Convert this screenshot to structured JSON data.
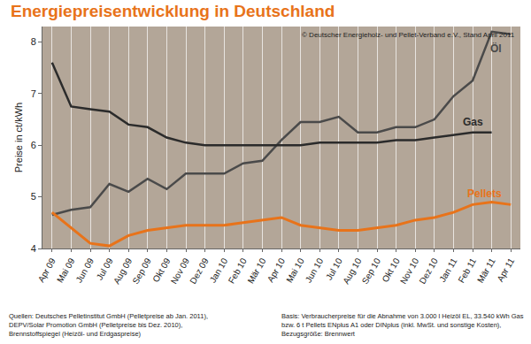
{
  "chart_data": {
    "type": "line",
    "title": "Energiepreisentwicklung in Deutschland",
    "y_label": "Preise in ct/kWh",
    "annotations": [
      [
        "© Deutscher Energieholz- und Pellet-Verband e.V., Stand April 2011"
      ],
      [
        "Quellen: Deutsches Pelletinstitut GmbH (Pelletpreise ab Jan. 2011),",
        "DEPV/Solar Promotion GmbH (Pelletpreise bis Dez. 2010),",
        "Brennstoffspiegel (Heizöl- und Erdgaspreise)"
      ],
      [
        "Basis: Verbraucherpreise für die Abnahme von 3.000 l Heizöl EL, 33.540 kWh Gas",
        "bzw. 6 t Pellets ENplus A1 oder DINplus (inkl. MwSt. und sonstige Kosten),",
        "Bezugsgröße: Brennwert"
      ]
    ],
    "categories": [
      "Apr 09",
      "Mai 09",
      "Jun 09",
      "Jul 09",
      "Aug 09",
      "Sep 09",
      "Okt 09",
      "Nov 09",
      "Dez 09",
      "Jan 10",
      "Feb 10",
      "Mär 10",
      "Apr 10",
      "Mai 10",
      "Jun 10",
      "Jul 10",
      "Aug 10",
      "Sep 10",
      "Okt 10",
      "Nov 10",
      "Dez 10",
      "Jan 11",
      "Feb 11",
      "Mär 11",
      "Apr 11"
    ],
    "series": [
      {
        "name": "Öl",
        "color": "#4a4a4a",
        "values": [
          4.65,
          4.75,
          4.8,
          5.25,
          5.1,
          5.35,
          5.15,
          5.45,
          5.45,
          5.45,
          5.65,
          5.7,
          6.1,
          6.45,
          6.45,
          6.55,
          6.25,
          6.25,
          6.35,
          6.35,
          6.5,
          6.95,
          7.25,
          8.2,
          8.15
        ]
      },
      {
        "name": "Gas",
        "color": "#2b2b2b",
        "values": [
          7.6,
          6.75,
          6.7,
          6.65,
          6.4,
          6.35,
          6.15,
          6.05,
          6.0,
          6.0,
          6.0,
          6.0,
          6.0,
          6.0,
          6.05,
          6.05,
          6.05,
          6.05,
          6.1,
          6.1,
          6.15,
          6.2,
          6.25,
          6.25,
          null
        ]
      },
      {
        "name": "Pellets",
        "color": "#e8731a",
        "values": [
          4.7,
          4.4,
          4.1,
          4.05,
          4.25,
          4.35,
          4.4,
          4.45,
          4.45,
          4.45,
          4.5,
          4.55,
          4.6,
          4.45,
          4.4,
          4.35,
          4.35,
          4.4,
          4.45,
          4.55,
          4.6,
          4.7,
          4.85,
          4.9,
          4.85
        ]
      }
    ],
    "ylim": [
      4,
      8.3
    ],
    "yticks": [
      4,
      5,
      6,
      7,
      8
    ],
    "grid": true
  }
}
